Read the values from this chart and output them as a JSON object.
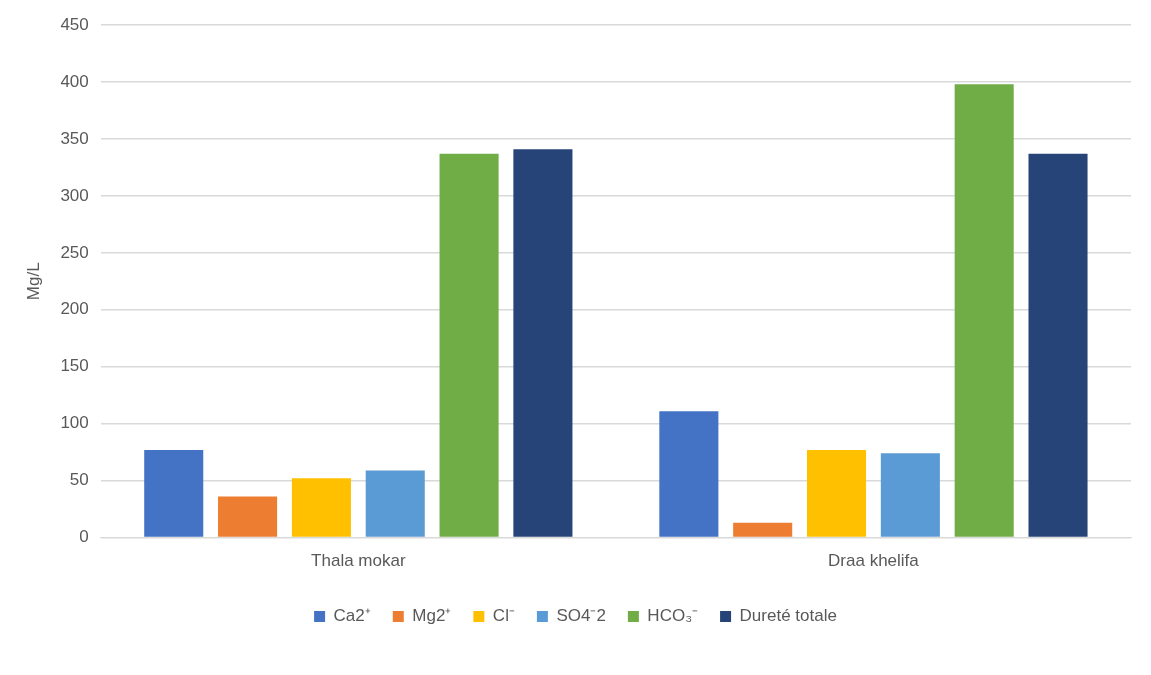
{
  "chart_data": {
    "type": "bar",
    "ylabel": "Mg/L",
    "categories": [
      "Thala mokar",
      "Draa khelifa"
    ],
    "series": [
      {
        "name": "Ca2⁺",
        "color": "#4472c4",
        "values": [
          77,
          111
        ]
      },
      {
        "name": "Mg2⁺",
        "color": "#ed7d31",
        "values": [
          36,
          13
        ]
      },
      {
        "name": "Cl⁻",
        "color": "#ffc000",
        "values": [
          52,
          77
        ]
      },
      {
        "name": "SO4⁻2",
        "color": "#5b9bd5",
        "values": [
          59,
          74
        ]
      },
      {
        "name": "HCO₃⁻",
        "color": "#70ad47",
        "values": [
          337,
          398
        ]
      },
      {
        "name": "Dureté totale",
        "color": "#264478",
        "values": [
          341,
          337
        ]
      }
    ],
    "ylim": [
      0,
      450
    ],
    "yticks": [
      0,
      50,
      100,
      150,
      200,
      250,
      300,
      350,
      400,
      450
    ],
    "grid": "y",
    "legend": "bottom"
  }
}
